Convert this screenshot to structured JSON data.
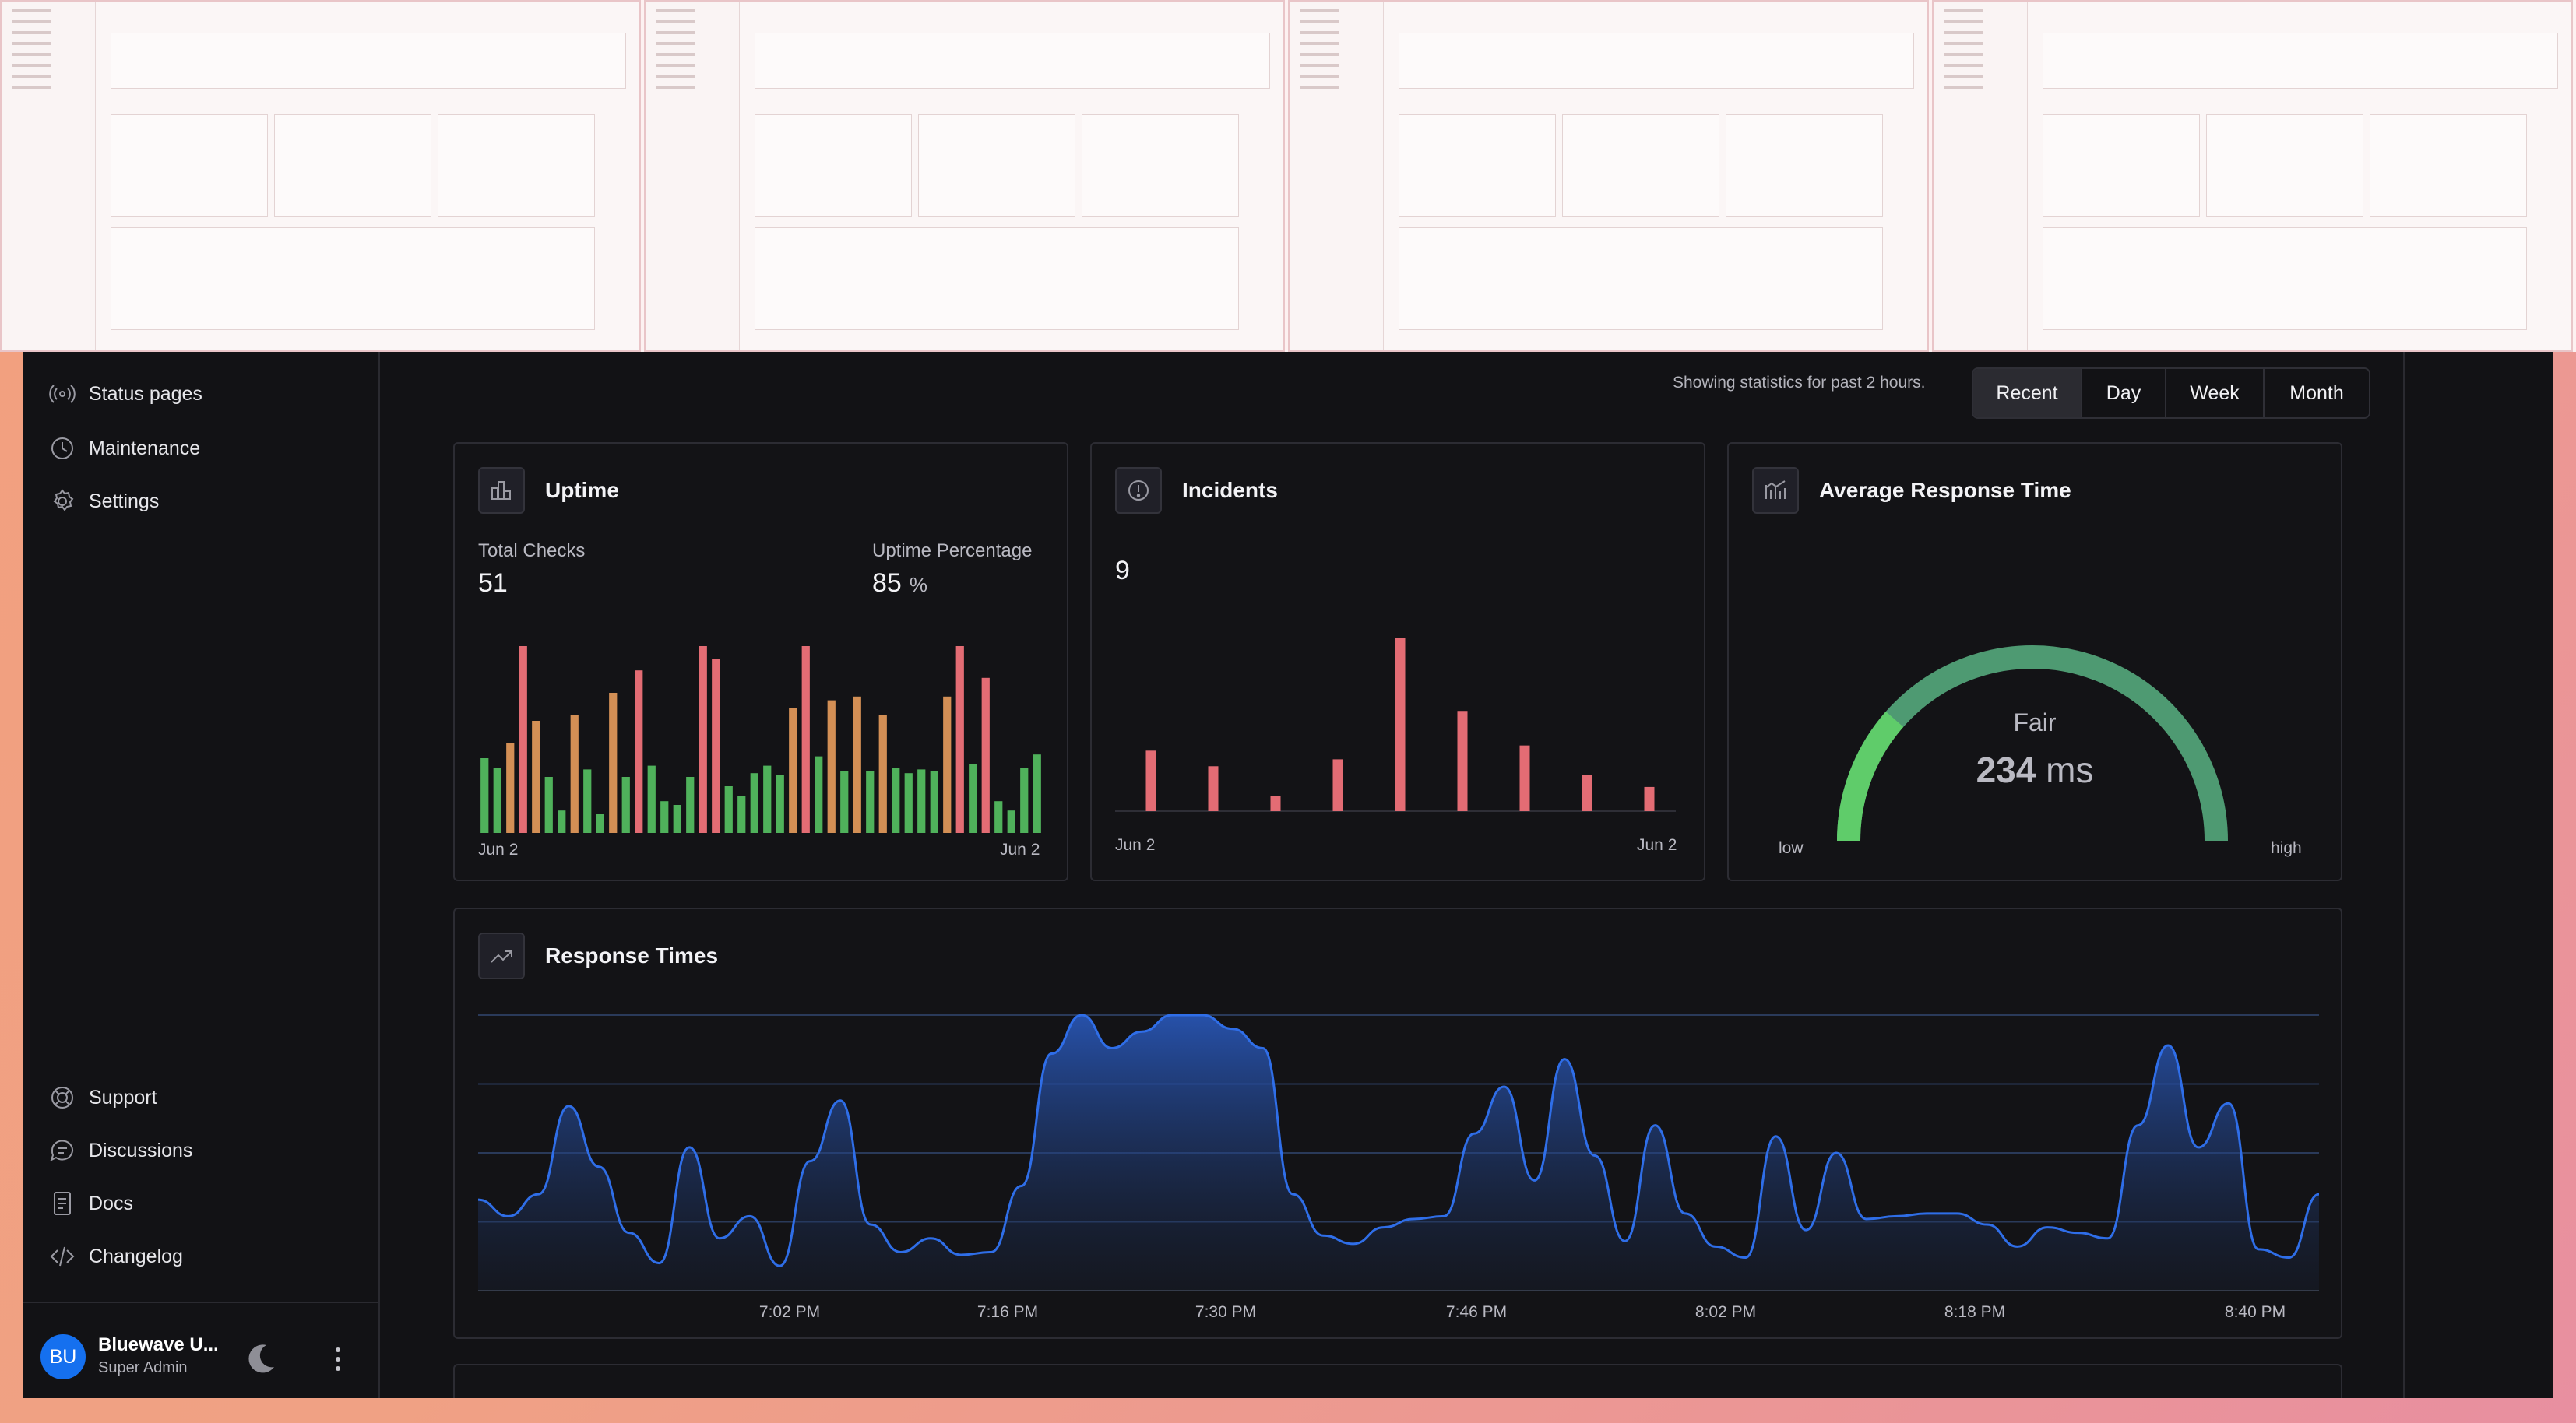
{
  "sidebar": {
    "items_top": [
      {
        "label": "Status pages",
        "icon": "broadcast-icon"
      },
      {
        "label": "Maintenance",
        "icon": "clock-icon"
      },
      {
        "label": "Settings",
        "icon": "gear-icon"
      }
    ],
    "items_bottom": [
      {
        "label": "Support",
        "icon": "lifebuoy-icon"
      },
      {
        "label": "Discussions",
        "icon": "chat-icon"
      },
      {
        "label": "Docs",
        "icon": "document-icon"
      },
      {
        "label": "Changelog",
        "icon": "code-icon"
      }
    ],
    "user": {
      "initials": "BU",
      "name": "Bluewave U...",
      "role": "Super Admin"
    }
  },
  "header": {
    "stats_note": "Showing statistics for past 2 hours.",
    "ranges": [
      "Recent",
      "Day",
      "Week",
      "Month"
    ],
    "active_range": "Recent"
  },
  "uptime": {
    "title": "Uptime",
    "total_checks_label": "Total Checks",
    "total_checks": "51",
    "uptime_pct_label": "Uptime Percentage",
    "uptime_pct": "85",
    "uptime_unit": "%",
    "axis_start": "Jun 2",
    "axis_end": "Jun 2"
  },
  "incidents": {
    "title": "Incidents",
    "count": "9",
    "axis_start": "Jun 2",
    "axis_end": "Jun 2"
  },
  "response": {
    "title": "Average Response Time",
    "rating": "Fair",
    "value": "234",
    "unit": "ms",
    "low_label": "low",
    "high_label": "high"
  },
  "response_times": {
    "title": "Response Times"
  },
  "colors": {
    "good": "#4fb15b",
    "warn": "#d38f55",
    "bad": "#e36c74",
    "line": "#2f6ee8",
    "gauge": "#4e9a72",
    "gauge_low": "#5fcc6a"
  },
  "chart_data": [
    {
      "type": "bar",
      "title": "Uptime",
      "x_labels": [
        "Jun 2",
        "Jun 2"
      ],
      "values": [
        0.4,
        0.35,
        0.48,
        1.0,
        0.6,
        0.3,
        0.12,
        0.63,
        0.34,
        0.1,
        0.75,
        0.3,
        0.87,
        0.36,
        0.17,
        0.15,
        0.3,
        1.0,
        0.93,
        0.25,
        0.2,
        0.32,
        0.36,
        0.31,
        0.67,
        1.0,
        0.41,
        0.71,
        0.33,
        0.73,
        0.33,
        0.63,
        0.35,
        0.32,
        0.34,
        0.33,
        0.73,
        1.0,
        0.37,
        0.83,
        0.17,
        0.12,
        0.35,
        0.42
      ],
      "status": [
        "good",
        "good",
        "warn",
        "bad",
        "warn",
        "good",
        "good",
        "warn",
        "good",
        "good",
        "warn",
        "good",
        "bad",
        "good",
        "good",
        "good",
        "good",
        "bad",
        "bad",
        "good",
        "good",
        "good",
        "good",
        "good",
        "warn",
        "bad",
        "good",
        "warn",
        "good",
        "warn",
        "good",
        "warn",
        "good",
        "good",
        "good",
        "good",
        "warn",
        "bad",
        "good",
        "bad",
        "good",
        "good",
        "good",
        "good"
      ]
    },
    {
      "type": "bar",
      "title": "Incidents",
      "x_labels": [
        "Jun 2",
        "Jun 2"
      ],
      "values": [
        0.35,
        0.26,
        0.09,
        0.3,
        1.0,
        0.58,
        0.38,
        0.21,
        0.14
      ]
    },
    {
      "type": "gauge",
      "title": "Average Response Time",
      "value": 234,
      "unit": "ms",
      "rating": "Fair",
      "fraction": 0.76
    },
    {
      "type": "area",
      "title": "Response Times",
      "x_ticks": [
        "7:02 PM",
        "7:16 PM",
        "7:30 PM",
        "7:46 PM",
        "8:02 PM",
        "8:18 PM",
        "8:40 PM"
      ],
      "values": [
        0.33,
        0.27,
        0.35,
        0.67,
        0.45,
        0.21,
        0.1,
        0.52,
        0.19,
        0.27,
        0.09,
        0.47,
        0.69,
        0.24,
        0.14,
        0.19,
        0.13,
        0.14,
        0.38,
        0.86,
        1.0,
        0.88,
        0.94,
        1.0,
        1.0,
        0.95,
        0.88,
        0.35,
        0.2,
        0.17,
        0.23,
        0.26,
        0.27,
        0.57,
        0.74,
        0.4,
        0.84,
        0.49,
        0.18,
        0.6,
        0.28,
        0.16,
        0.12,
        0.56,
        0.22,
        0.5,
        0.26,
        0.27,
        0.28,
        0.28,
        0.24,
        0.16,
        0.23,
        0.21,
        0.19,
        0.6,
        0.89,
        0.52,
        0.68,
        0.15,
        0.12,
        0.35
      ]
    }
  ]
}
